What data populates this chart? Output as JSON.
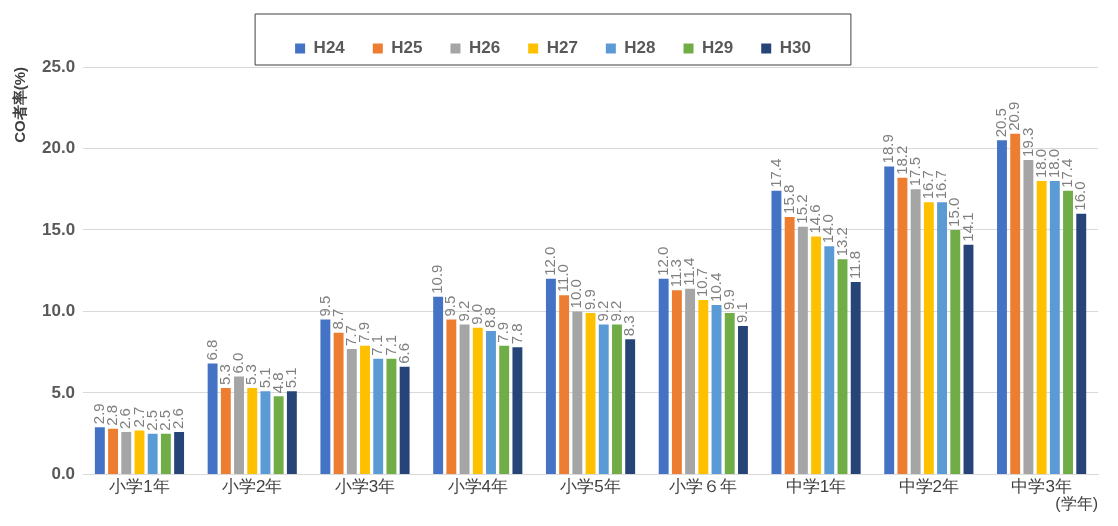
{
  "chart_data": {
    "type": "bar",
    "ylabel": "CO者率(%)",
    "xlabel": "(学年)",
    "categories": [
      "小学1年",
      "小学2年",
      "小学3年",
      "小学4年",
      "小学5年",
      "小学６年",
      "中学1年",
      "中学2年",
      "中学3年"
    ],
    "series": [
      {
        "name": "H24",
        "color": "#4472c4",
        "values": [
          2.9,
          6.8,
          9.5,
          10.9,
          12,
          12,
          17.4,
          18.9,
          20.5
        ],
        "value_labels": [
          "2.9",
          "6.8",
          "9.5",
          "10.9",
          "12.0",
          "12.0",
          "17.4",
          "18.9",
          "20.5"
        ]
      },
      {
        "name": "H25",
        "color": "#ed7d31",
        "values": [
          2.8,
          5.3,
          8.7,
          9.5,
          11,
          11.3,
          15.8,
          18.2,
          20.9
        ],
        "value_labels": [
          "2.8",
          "5.3",
          "8.7",
          "9.5",
          "11.0",
          "11.3",
          "15.8",
          "18.2",
          "20.9"
        ]
      },
      {
        "name": "H26",
        "color": "#a5a5a5",
        "values": [
          2.6,
          6,
          7.7,
          9.2,
          10,
          11.4,
          15.2,
          17.5,
          19.3
        ],
        "value_labels": [
          "2.6",
          "6.0",
          "7.7",
          "9.2",
          "10.0",
          "11.4",
          "15.2",
          "17.5",
          "19.3"
        ]
      },
      {
        "name": "H27",
        "color": "#ffc000",
        "values": [
          2.7,
          5.3,
          7.9,
          9,
          9.9,
          10.7,
          14.6,
          16.7,
          18
        ],
        "value_labels": [
          "2.7",
          "5.3",
          "7.9",
          "9.0",
          "9.9",
          "10.7",
          "14.6",
          "16.7",
          "18.0"
        ]
      },
      {
        "name": "H28",
        "color": "#5b9bd5",
        "values": [
          2.5,
          5.1,
          7.1,
          8.8,
          9.2,
          10.4,
          14,
          16.7,
          18
        ],
        "value_labels": [
          "2.5",
          "5.1",
          "7.1",
          "8.8",
          "9.2",
          "10.4",
          "14.0",
          "16.7",
          "18.0"
        ]
      },
      {
        "name": "H29",
        "color": "#70ad47",
        "values": [
          2.5,
          4.8,
          7.1,
          7.9,
          9.2,
          9.9,
          13.2,
          15,
          17.4
        ],
        "value_labels": [
          "2.5",
          "4.8",
          "7.1",
          "7.9",
          "9.2",
          "9.9",
          "13.2",
          "15.0",
          "17.4"
        ]
      },
      {
        "name": "H30",
        "color": "#264478",
        "values": [
          2.6,
          5.1,
          6.6,
          7.8,
          8.3,
          9.1,
          11.8,
          14.1,
          16
        ],
        "value_labels": [
          "2.6",
          "5.1",
          "6.6",
          "7.8",
          "8.3",
          "9.1",
          "11.8",
          "14.1",
          "16.0"
        ]
      }
    ],
    "ylim": [
      0,
      25
    ],
    "yticks": [
      {
        "value": 0,
        "label": "0.0"
      },
      {
        "value": 5,
        "label": "5.0"
      },
      {
        "value": 10,
        "label": "10.0"
      },
      {
        "value": 15,
        "label": "15.0"
      },
      {
        "value": 20,
        "label": "20.0"
      },
      {
        "value": 25,
        "label": "25.0"
      }
    ],
    "grid": "y",
    "legend": "top"
  }
}
